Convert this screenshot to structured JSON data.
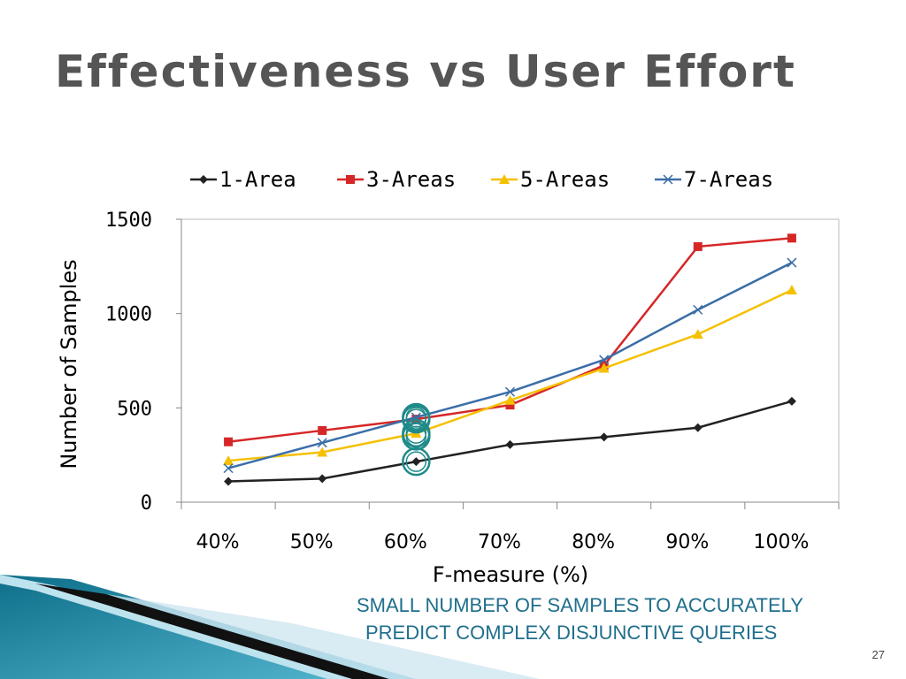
{
  "slide": {
    "title": "Effectiveness vs User Effort",
    "annotation_line1": "SMALL NUMBER OF SAMPLES TO ACCURATELY",
    "annotation_line2": "PREDICT COMPLEX DISJUNCTIVE QUERIES",
    "page_number": "27"
  },
  "chart_data": {
    "type": "line",
    "title": "",
    "xlabel": "F-measure (%)",
    "ylabel": "Number of Samples",
    "categories": [
      "40%",
      "50%",
      "60%",
      "70%",
      "80%",
      "90%",
      "100%"
    ],
    "ylim": [
      0,
      1500
    ],
    "yticks": [
      "0",
      "500",
      "1000",
      "1500"
    ],
    "grid": false,
    "legend_position": "top",
    "series": [
      {
        "name": "1-Area",
        "color": "#222222",
        "marker": "diamond",
        "values": [
          110,
          125,
          215,
          305,
          345,
          395,
          535
        ]
      },
      {
        "name": "3-Areas",
        "color": "#d62728",
        "marker": "square",
        "values": [
          320,
          380,
          440,
          515,
          725,
          1355,
          1400
        ]
      },
      {
        "name": "5-Areas",
        "color": "#f5c000",
        "marker": "triangle",
        "values": [
          220,
          265,
          365,
          540,
          710,
          890,
          1125
        ]
      },
      {
        "name": "7-Areas",
        "color": "#3b6ea8",
        "marker": "x",
        "values": [
          180,
          315,
          450,
          585,
          755,
          1020,
          1270
        ]
      }
    ],
    "highlight_category": "60%"
  }
}
